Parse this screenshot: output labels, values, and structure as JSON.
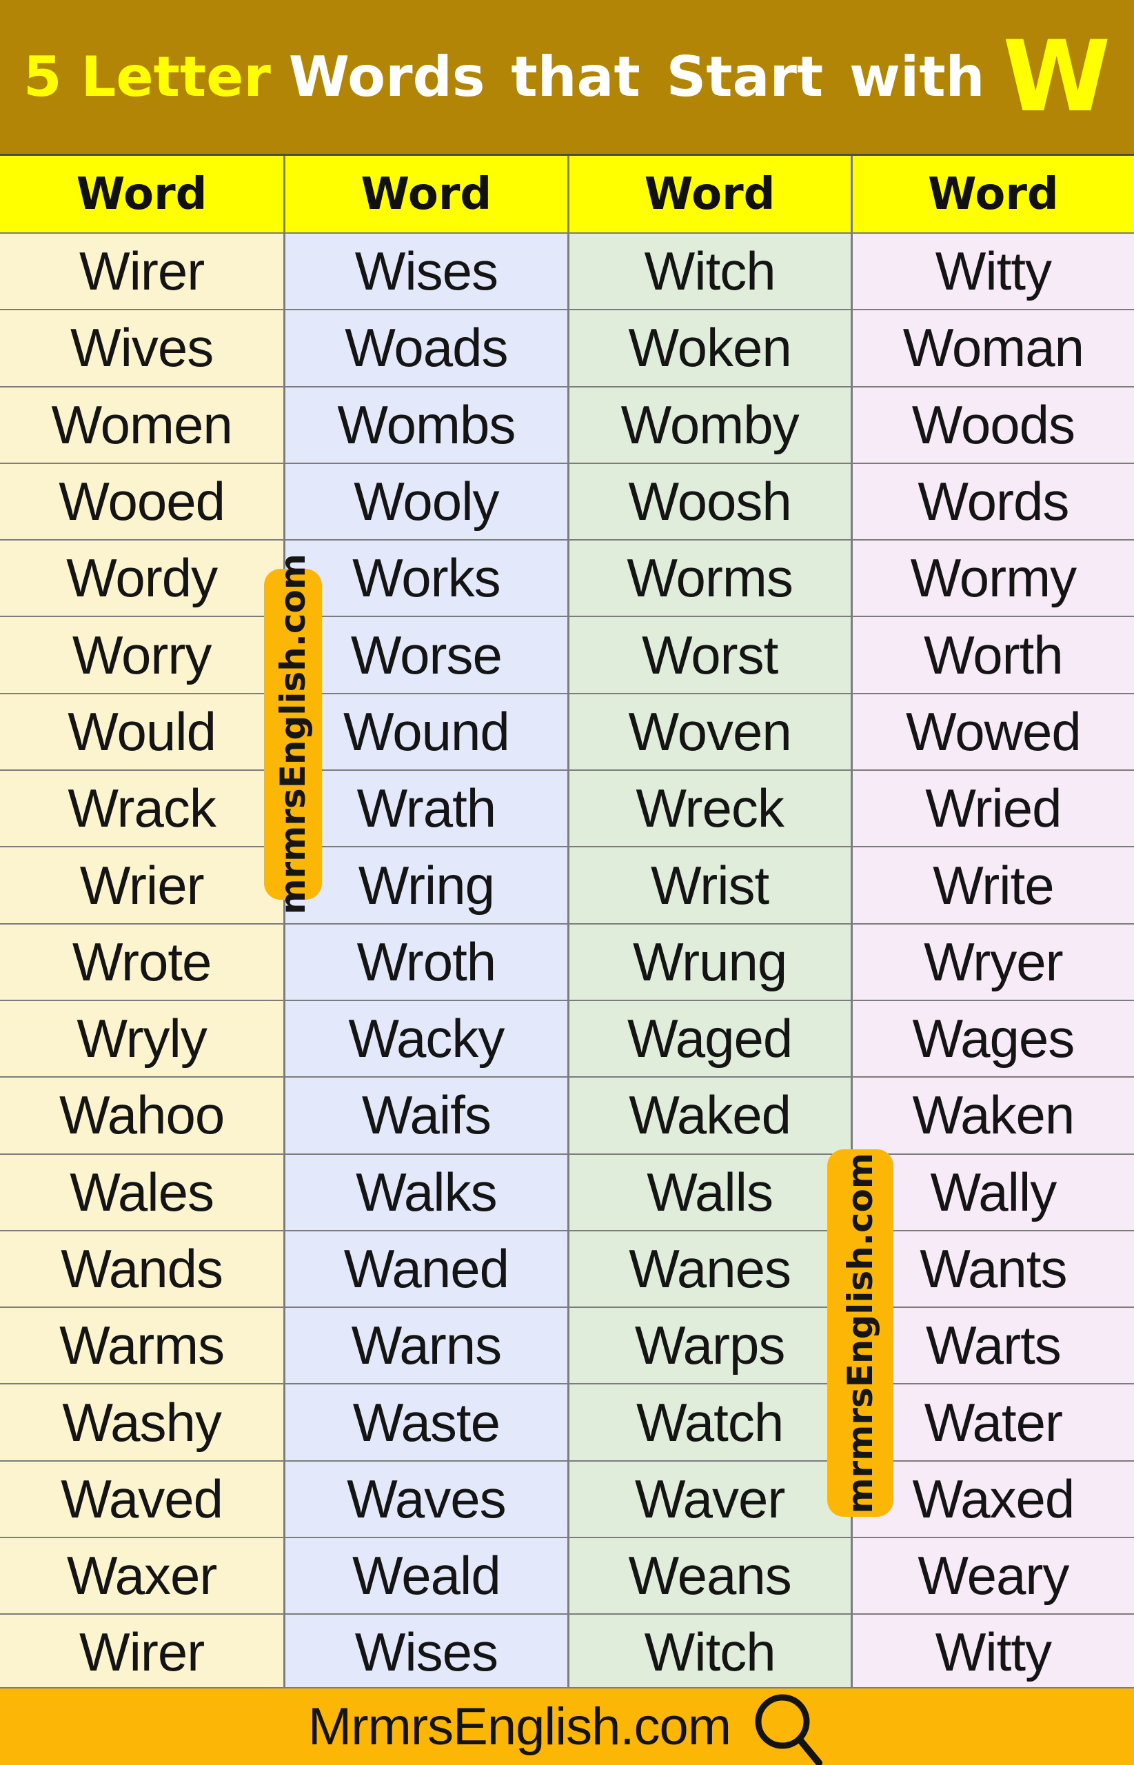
{
  "title": {
    "prefix": "5 Letter",
    "middle": "Words that Start with",
    "letter": "W"
  },
  "table": {
    "headers": [
      "Word",
      "Word",
      "Word",
      "Word"
    ],
    "rows": [
      [
        "Wirer",
        "Wises",
        "Witch",
        "Witty"
      ],
      [
        "Wives",
        "Woads",
        "Woken",
        "Woman"
      ],
      [
        "Women",
        "Wombs",
        "Womby",
        "Woods"
      ],
      [
        "Wooed",
        "Wooly",
        "Woosh",
        "Words"
      ],
      [
        "Wordy",
        "Works",
        "Worms",
        "Wormy"
      ],
      [
        "Worry",
        "Worse",
        "Worst",
        "Worth"
      ],
      [
        "Would",
        "Wound",
        "Woven",
        "Wowed"
      ],
      [
        "Wrack",
        "Wrath",
        "Wreck",
        "Wried"
      ],
      [
        "Wrier",
        "Wring",
        "Wrist",
        "Write"
      ],
      [
        "Wrote",
        "Wroth",
        "Wrung",
        "Wryer"
      ],
      [
        "Wryly",
        "Wacky",
        "Waged",
        "Wages"
      ],
      [
        "Wahoo",
        "Waifs",
        "Waked",
        "Waken"
      ],
      [
        "Wales",
        "Walks",
        "Walls",
        "Wally"
      ],
      [
        "Wands",
        "Waned",
        "Wanes",
        "Wants"
      ],
      [
        "Warms",
        "Warns",
        "Warps",
        "Warts"
      ],
      [
        "Washy",
        "Waste",
        "Watch",
        "Water"
      ],
      [
        "Waved",
        "Waves",
        "Waver",
        "Waxed"
      ],
      [
        "Waxer",
        "Weald",
        "Weans",
        "Weary"
      ],
      [
        "Wirer",
        "Wises",
        "Witch",
        "Witty"
      ]
    ]
  },
  "watermarks": [
    {
      "text": "mrmrsEnglish.com"
    },
    {
      "text": "mrmrsEnglish.com"
    }
  ],
  "footer": {
    "site": "MrmrsEnglish.com",
    "icon": "search-icon"
  },
  "colors": {
    "band_bg": "#B28506",
    "title_accent": "#FFFF00",
    "title_text": "#FFFFFF",
    "header_bg": "#FFFF00",
    "header_text": "#111111",
    "col1_bg": "#FCF3CF",
    "col2_bg": "#E3E8FA",
    "col3_bg": "#E0EDDA",
    "col4_bg": "#F7EBF8",
    "word_text": "#141414",
    "grid_line": "#7C7C7C",
    "accent_amber": "#FCB606",
    "watermark_text": "#161616",
    "footer_text": "#141414"
  }
}
